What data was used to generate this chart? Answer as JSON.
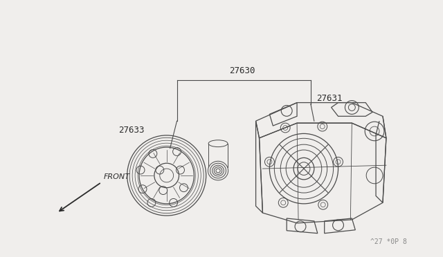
{
  "bg_color": "#f0eeec",
  "line_color": "#4a4a4a",
  "text_color": "#2a2a2a",
  "lw": 0.9,
  "figsize": [
    6.4,
    3.72
  ],
  "dpi": 100,
  "watermark": "^27 *0P 8"
}
